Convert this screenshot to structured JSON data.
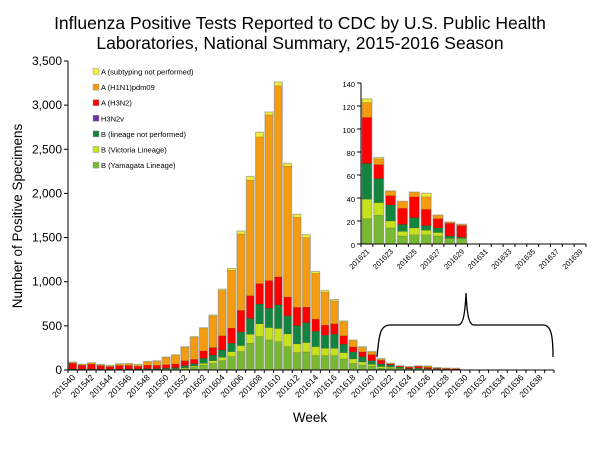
{
  "chart_data": {
    "type": "bar",
    "stacked": true,
    "title": [
      "Influenza Positive Tests Reported to CDC by U.S. Public Health",
      "Laboratories, National Summary, 2015-2016 Season"
    ],
    "xlabel": "Week",
    "ylabel": "Number of Positive Specimens",
    "ylim": [
      0,
      3500
    ],
    "yticks": [
      0,
      500,
      1000,
      1500,
      2000,
      2500,
      3000,
      3500
    ],
    "ytick_labels": [
      "0",
      "500",
      "1,000",
      "1,500",
      "2,000",
      "2,500",
      "3,000",
      "3,500"
    ],
    "grid": false,
    "legend_position": "top-left",
    "categories": [
      "201540",
      "201541",
      "201542",
      "201543",
      "201544",
      "201545",
      "201546",
      "201547",
      "201548",
      "201549",
      "201550",
      "201551",
      "201552",
      "201601",
      "201602",
      "201603",
      "201604",
      "201605",
      "201606",
      "201607",
      "201608",
      "201609",
      "201610",
      "201611",
      "201612",
      "201613",
      "201614",
      "201615",
      "201616",
      "201617",
      "201618",
      "201619",
      "201620",
      "201621",
      "201622",
      "201623",
      "201624",
      "201625",
      "201626",
      "201627",
      "201628",
      "201629",
      "201630",
      "201631",
      "201632",
      "201633",
      "201634",
      "201635",
      "201636",
      "201637",
      "201638",
      "201639"
    ],
    "xtick_labels": [
      "201540",
      "201542",
      "201544",
      "201546",
      "201548",
      "201550",
      "201552",
      "201602",
      "201604",
      "201606",
      "201608",
      "201610",
      "201612",
      "201614",
      "201616",
      "201618",
      "201620",
      "201622",
      "201624",
      "201626",
      "201628",
      "201630",
      "201632",
      "201634",
      "201636",
      "201638"
    ],
    "series": [
      {
        "name": "A (subtyping not performed)",
        "color": "#f2ee3a",
        "values": [
          2,
          2,
          2,
          2,
          2,
          2,
          2,
          2,
          3,
          3,
          4,
          4,
          6,
          7,
          7,
          9,
          13,
          18,
          32,
          40,
          50,
          30,
          40,
          30,
          31,
          30,
          19,
          18,
          12,
          8,
          7,
          5,
          3,
          3,
          1,
          0,
          0,
          0,
          3,
          0,
          0,
          0,
          0,
          0,
          0,
          0,
          0,
          0,
          0,
          0,
          0,
          0
        ]
      },
      {
        "name": "A (H1N1)pdm09",
        "color": "#f39c12",
        "values": [
          9,
          8,
          13,
          10,
          9,
          16,
          19,
          18,
          37,
          47,
          80,
          98,
          150,
          248,
          254,
          358,
          513,
          656,
          865,
          1309,
          1662,
          1878,
          2166,
          1484,
          1021,
          788,
          519,
          372,
          260,
          158,
          69,
          51,
          31,
          13,
          5,
          4,
          6,
          4,
          11,
          3,
          1,
          1,
          0,
          0,
          0,
          0,
          0,
          0,
          0,
          0,
          0,
          0
        ]
      },
      {
        "name": "A (H3N2)",
        "color": "#ff0000",
        "values": [
          65,
          45,
          55,
          40,
          30,
          40,
          40,
          30,
          40,
          36,
          40,
          40,
          55,
          50,
          83,
          84,
          160,
          171,
          243,
          257,
          231,
          311,
          315,
          212,
          205,
          174,
          136,
          114,
          118,
          95,
          56,
          53,
          68,
          40,
          12,
          8,
          14,
          18,
          14,
          8,
          11,
          10,
          0,
          0,
          0,
          0,
          0,
          0,
          0,
          0,
          0,
          0
        ]
      },
      {
        "name": "H3N2v",
        "color": "#7030a0",
        "values": [
          0,
          0,
          0,
          0,
          0,
          0,
          0,
          0,
          0,
          0,
          0,
          0,
          0,
          0,
          0,
          0,
          0,
          0,
          0,
          0,
          0,
          0,
          0,
          0,
          0,
          0,
          0,
          0,
          0,
          0,
          0,
          0,
          0,
          0,
          0,
          0,
          0,
          0,
          0,
          0,
          0,
          0,
          0,
          0,
          0,
          0,
          0,
          0,
          0,
          0,
          0,
          0
        ]
      },
      {
        "name": "B (lineage not performed)",
        "color": "#13843f",
        "values": [
          6,
          5,
          5,
          5,
          4,
          5,
          6,
          6,
          8,
          8,
          10,
          15,
          25,
          25,
          57,
          64,
          83,
          95,
          155,
          179,
          224,
          220,
          269,
          205,
          208,
          227,
          175,
          148,
          159,
          95,
          80,
          61,
          42,
          31,
          21,
          14,
          6,
          9,
          4,
          4,
          2,
          1,
          0,
          0,
          0,
          0,
          0,
          0,
          0,
          0,
          0,
          0
        ]
      },
      {
        "name": "B (Victoria Lineage)",
        "color": "#c6e21c",
        "values": [
          2,
          2,
          2,
          2,
          2,
          2,
          2,
          2,
          3,
          3,
          5,
          5,
          10,
          15,
          19,
          30,
          38,
          56,
          69,
          102,
          144,
          140,
          148,
          144,
          99,
          106,
          102,
          83,
          83,
          72,
          49,
          34,
          19,
          17,
          11,
          6,
          4,
          6,
          4,
          3,
          0,
          0,
          0,
          0,
          0,
          0,
          0,
          0,
          0,
          0,
          0,
          0
        ]
      },
      {
        "name": "B (Yamagata Lineage)",
        "color": "#78b833",
        "values": [
          3,
          2,
          3,
          2,
          2,
          3,
          3,
          3,
          4,
          5,
          5,
          8,
          15,
          30,
          57,
          76,
          106,
          152,
          208,
          303,
          379,
          341,
          322,
          265,
          197,
          205,
          163,
          163,
          163,
          125,
          76,
          57,
          45,
          22,
          25,
          14,
          7,
          8,
          8,
          7,
          5,
          5,
          0,
          0,
          0,
          0,
          0,
          0,
          0,
          0,
          0,
          0
        ]
      }
    ],
    "inset": {
      "categories_from": "201621",
      "categories_to": "201639",
      "ylim": [
        0,
        140
      ],
      "yticks": [
        0,
        20,
        40,
        60,
        80,
        100,
        120,
        140
      ],
      "ytick_labels": [
        "0",
        "20",
        "40",
        "60",
        "80",
        "100",
        "120",
        "140"
      ],
      "xtick_labels": [
        "201621",
        "201623",
        "201625",
        "201627",
        "201629",
        "201631",
        "201633",
        "201635",
        "201637",
        "201639"
      ]
    }
  }
}
